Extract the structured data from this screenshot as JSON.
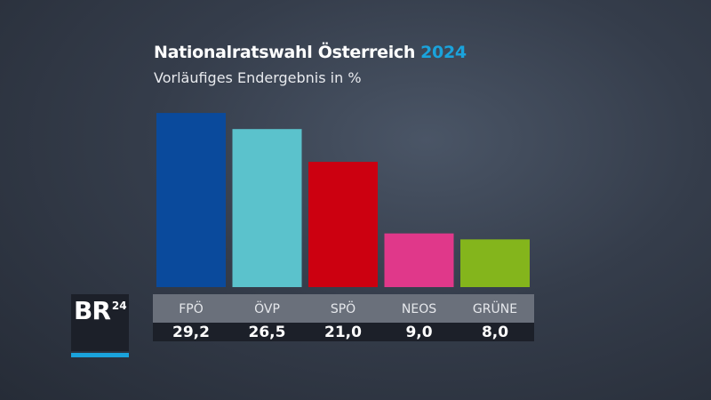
{
  "title": "Nationalratswahl Österreich",
  "title_year": "2024",
  "subtitle": "Vorläufiges Endergebnis in %",
  "logo": "BR24",
  "chart_data": {
    "type": "bar",
    "title": "Nationalratswahl Österreich 2024",
    "subtitle": "Vorläufiges Endergebnis in %",
    "categories": [
      "FPÖ",
      "ÖVP",
      "SPÖ",
      "NEOS",
      "GRÜNE"
    ],
    "values": [
      29.2,
      26.5,
      21.0,
      9.0,
      8.0
    ],
    "value_labels": [
      "29,2",
      "26,5",
      "21,0",
      "9,0",
      "8,0"
    ],
    "colors": [
      "#0a4a9c",
      "#5bc2cc",
      "#cc0010",
      "#e0388a",
      "#84b51c"
    ],
    "ylim": [
      0,
      30
    ],
    "grid": false
  }
}
